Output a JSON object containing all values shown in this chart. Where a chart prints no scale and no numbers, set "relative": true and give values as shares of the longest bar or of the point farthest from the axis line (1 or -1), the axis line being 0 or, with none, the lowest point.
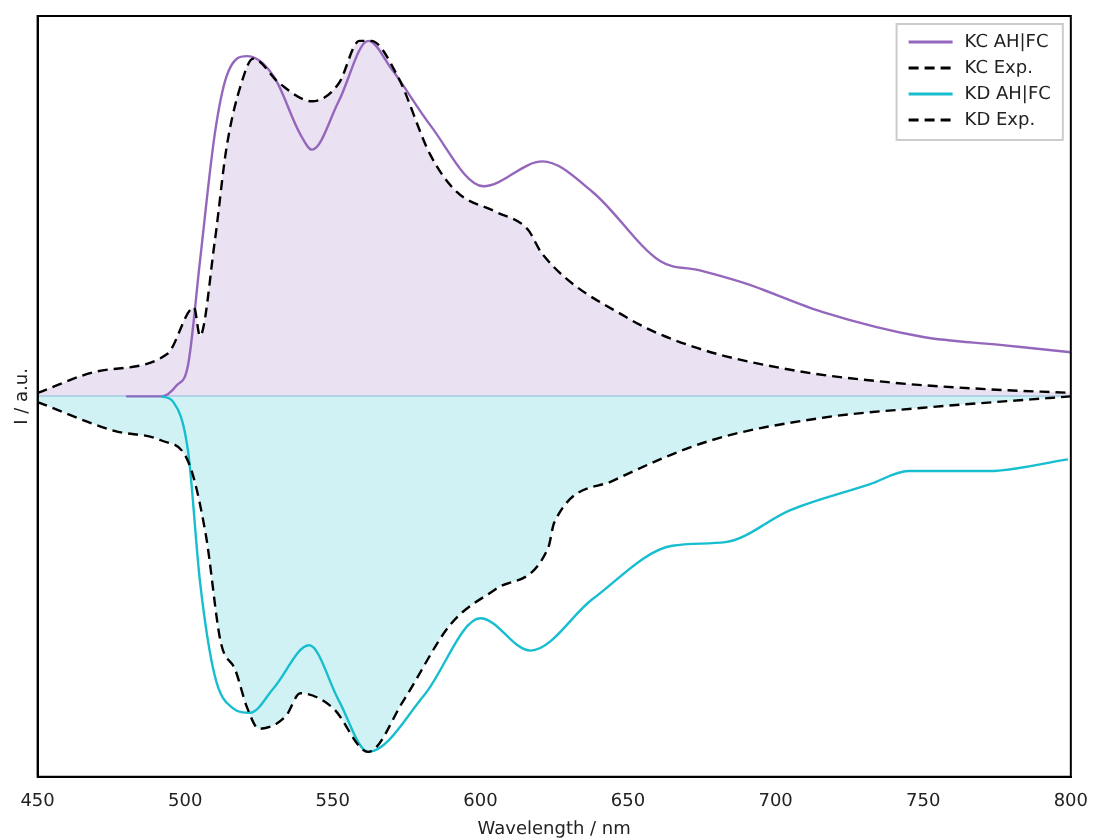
{
  "chart_data": {
    "type": "line",
    "xlabel": "Wavelength / nm",
    "ylabel": "I / a.u.",
    "relative": true,
    "xlim": [
      450,
      800
    ],
    "xticks": [
      450,
      500,
      550,
      600,
      650,
      700,
      750,
      800
    ],
    "grid": false,
    "legend": "top right",
    "marker": "none",
    "series": [
      {
        "name": "KC AH|FC",
        "color": "#9467bd",
        "line_style": "solid",
        "x": [
          480,
          492,
          497,
          501,
          505,
          510,
          514,
          521,
          530,
          539,
          543,
          552,
          562,
          570,
          583,
          601,
          621,
          638,
          661,
          674,
          690,
          716,
          750,
          776,
          800
        ],
        "values": [
          0,
          0,
          0.03,
          0.09,
          0.38,
          0.737,
          0.9,
          0.957,
          0.9,
          0.737,
          0.694,
          0.83,
          1.0,
          0.92,
          0.763,
          0.591,
          0.661,
          0.575,
          0.38,
          0.355,
          0.317,
          0.237,
          0.167,
          0.145,
          0.124
        ]
      },
      {
        "name": "KC Exp.",
        "type": "area",
        "color": "#000000",
        "line_style": "dashed",
        "x": [
          450,
          470,
          494,
          503,
          505,
          510,
          514,
          519,
          523,
          532,
          543,
          552,
          559,
          563,
          572,
          583,
          592,
          605,
          616,
          621,
          650,
          672,
          705,
          738,
          772,
          800
        ],
        "values": [
          0.01,
          0.07,
          0.12,
          0.25,
          0.17,
          0.435,
          0.7,
          0.88,
          0.95,
          0.88,
          0.83,
          0.88,
          1.0,
          1.0,
          0.9,
          0.68,
          0.575,
          0.52,
          0.47,
          0.4,
          0.22,
          0.14,
          0.075,
          0.04,
          0.02,
          0.01
        ]
      },
      {
        "name": "KD AH|FC",
        "color": "#17becf",
        "line_style": "solid",
        "x": [
          492,
          496,
          501,
          505,
          510,
          516,
          522,
          530,
          542,
          552,
          562,
          581,
          600,
          617,
          638,
          665,
          683,
          705,
          732,
          745,
          772,
          799
        ],
        "values": [
          0,
          -0.016,
          -0.156,
          -0.52,
          -0.785,
          -0.876,
          -0.89,
          -0.82,
          -0.7,
          -0.855,
          -1.0,
          -0.84,
          -0.624,
          -0.715,
          -0.57,
          -0.42,
          -0.41,
          -0.32,
          -0.247,
          -0.21,
          -0.21,
          -0.177
        ]
      },
      {
        "name": "KD Exp.",
        "type": "area",
        "color": "#000000",
        "line_style": "dashed",
        "x": [
          450,
          476,
          492,
          501,
          507,
          512,
          517,
          521,
          525,
          534,
          539,
          550,
          562,
          574,
          590,
          605,
          623,
          625,
          645,
          678,
          716,
          750,
          792,
          800
        ],
        "values": [
          -0.016,
          -0.097,
          -0.124,
          -0.183,
          -0.39,
          -0.69,
          -0.77,
          -0.876,
          -0.935,
          -0.9,
          -0.835,
          -0.876,
          -1.0,
          -0.855,
          -0.64,
          -0.543,
          -0.425,
          -0.355,
          -0.237,
          -0.124,
          -0.06,
          -0.032,
          -0.005,
          0
        ]
      }
    ]
  }
}
